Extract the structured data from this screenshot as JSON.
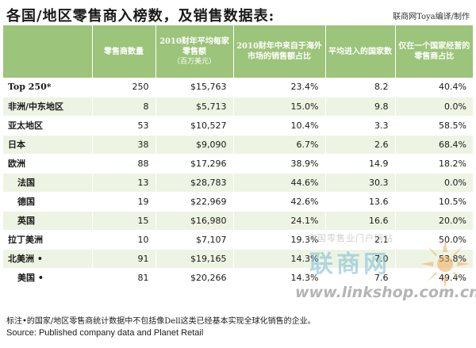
{
  "title": "各国/地区零售商入榜数，及销售数据表:",
  "credit": "联商网Toya编译/制作",
  "table": {
    "headers": [
      {
        "main": ""
      },
      {
        "main": "零售商数量"
      },
      {
        "main": "2010财年平均每家零售额",
        "sub": "（百万美元）"
      },
      {
        "main": "2010财年中来自于海外市场的销售额占比"
      },
      {
        "main": "平均进入的国家数"
      },
      {
        "main": "仅在一个国家经营的零售商占比"
      }
    ],
    "rows": [
      {
        "region": "Top 250*",
        "count": "250",
        "avg_sales": "$15,763",
        "foreign_share": "23.4%",
        "countries": "8.2",
        "single_country": "40.4%",
        "indent": false
      },
      {
        "region": "非洲/中东地区",
        "count": "8",
        "avg_sales": "$5,713",
        "foreign_share": "15.0%",
        "countries": "9.8",
        "single_country": "0.0%",
        "indent": false
      },
      {
        "region": "亚太地区",
        "count": "53",
        "avg_sales": "$10,527",
        "foreign_share": "10.4%",
        "countries": "3.3",
        "single_country": "58.5%",
        "indent": false
      },
      {
        "region": "日本",
        "count": "38",
        "avg_sales": "$9,090",
        "foreign_share": "6.7%",
        "countries": "2.6",
        "single_country": "68.4%",
        "indent": false
      },
      {
        "region": "欧洲",
        "count": "88",
        "avg_sales": "$17,296",
        "foreign_share": "38.9%",
        "countries": "14.9",
        "single_country": "18.2%",
        "indent": false
      },
      {
        "region": "法国",
        "count": "13",
        "avg_sales": "$28,783",
        "foreign_share": "44.6%",
        "countries": "30.3",
        "single_country": "0.0%",
        "indent": true
      },
      {
        "region": "德国",
        "count": "19",
        "avg_sales": "$22,969",
        "foreign_share": "42.6%",
        "countries": "13.6",
        "single_country": "10.5%",
        "indent": true
      },
      {
        "region": "英国",
        "count": "15",
        "avg_sales": "$16,980",
        "foreign_share": "24.1%",
        "countries": "16.6",
        "single_country": "20.0%",
        "indent": true
      },
      {
        "region": "拉丁美洲",
        "count": "10",
        "avg_sales": "$7,107",
        "foreign_share": "19.3%",
        "countries": "2.1",
        "single_country": "50.0%",
        "indent": false
      },
      {
        "region": "北美洲 •",
        "count": "91",
        "avg_sales": "$19,165",
        "foreign_share": "14.3%",
        "countries": "7.0",
        "single_country": "53.8%",
        "indent": false
      },
      {
        "region": "美国 •",
        "count": "81",
        "avg_sales": "$20,266",
        "foreign_share": "14.3%",
        "countries": "7.6",
        "single_country": "49.4%",
        "indent": true
      }
    ]
  },
  "watermark": {
    "cn_text": "中国零售业门户网站",
    "big_text": "联商网",
    "url": "www.linkshop.com.cn"
  },
  "note": "标注•的国家/地区零售商统计数据中不包括像Dell这类已经基本实现全球化销售的企业。",
  "source": "Source: Published company data and Planet Retail",
  "colors": {
    "header_bg": "#9cc47a",
    "row_alt": "#eef4e3"
  }
}
